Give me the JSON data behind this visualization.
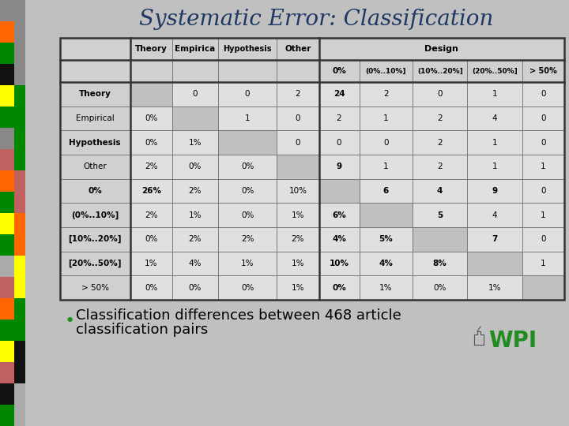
{
  "title": "Systematic Error: Classification",
  "title_color": "#1F3864",
  "title_fontsize": 20,
  "bullet_text_line1": "Classification differences between 468 article",
  "bullet_text_line2": "classification pairs",
  "bullet_color": "#228B22",
  "col_header1": [
    "",
    "Theory",
    "Empirica",
    "Hypothesis",
    "Other",
    "Design"
  ],
  "col_header2": [
    "0%",
    "(0%..10%]",
    "(10%..20%]",
    "(20%..50%]",
    "> 50%"
  ],
  "table_data": [
    [
      "Theory",
      "",
      "0",
      "0",
      "2",
      "24",
      "2",
      "0",
      "1",
      "0"
    ],
    [
      "Empirical",
      "0%",
      "",
      "1",
      "0",
      "2",
      "1",
      "2",
      "4",
      "0"
    ],
    [
      "Hypothesis",
      "0%",
      "1%",
      "",
      "0",
      "0",
      "0",
      "2",
      "1",
      "0"
    ],
    [
      "Other",
      "2%",
      "0%",
      "0%",
      "",
      "9",
      "1",
      "2",
      "1",
      "1"
    ],
    [
      "0%",
      "26%",
      "2%",
      "0%",
      "10%",
      "",
      "6",
      "4",
      "9",
      "0"
    ],
    [
      "(0%..10%]",
      "2%",
      "1%",
      "0%",
      "1%",
      "6%",
      "",
      "5",
      "4",
      "1"
    ],
    [
      "[10%..20%]",
      "0%",
      "2%",
      "2%",
      "2%",
      "4%",
      "5%",
      "",
      "7",
      "0"
    ],
    [
      "[20%..50%]",
      "1%",
      "4%",
      "1%",
      "1%",
      "10%",
      "4%",
      "8%",
      "",
      "1"
    ],
    [
      "> 50%",
      "0%",
      "0%",
      "0%",
      "1%",
      "0%",
      "1%",
      "0%",
      "1%",
      ""
    ]
  ],
  "bold_data_cells": [
    [
      0,
      5
    ],
    [
      3,
      5
    ],
    [
      4,
      1
    ],
    [
      4,
      6
    ],
    [
      4,
      7
    ],
    [
      4,
      8
    ],
    [
      5,
      5
    ],
    [
      5,
      7
    ],
    [
      6,
      5
    ],
    [
      6,
      6
    ],
    [
      6,
      8
    ],
    [
      7,
      5
    ],
    [
      7,
      6
    ],
    [
      7,
      7
    ],
    [
      8,
      5
    ]
  ],
  "bold_row_labels": [
    "Theory",
    "Hypothesis",
    "0%",
    "(0%..10%]",
    "[10%..20%]",
    "[20%..50%]"
  ],
  "side_bar1_colors": [
    "#888888",
    "#ff6600",
    "#008800",
    "#111111",
    "#ffff00",
    "#008800",
    "#888888",
    "#c06060",
    "#ff6600",
    "#008800",
    "#ffff00",
    "#008800",
    "#aaaaaa",
    "#c06060",
    "#ff6600",
    "#008800",
    "#ffff00",
    "#c06060",
    "#111111",
    "#008800"
  ],
  "side_bar2_colors": [
    "#888888",
    "#888888",
    "#008800",
    "#008800",
    "#c06060",
    "#ff6600",
    "#ffff00",
    "#008800",
    "#111111",
    "#aaaaaa"
  ],
  "header_bg": "#d0d0d0",
  "cell_bg": "#e0e0e0",
  "diag_bg": "#c0c0c0",
  "slide_bg": "#c0c0c0"
}
